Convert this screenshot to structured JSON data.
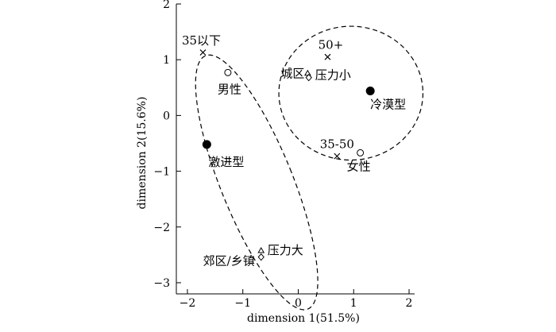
{
  "chart_data": {
    "type": "scatter",
    "xlabel": "dimension 1(51.5%)",
    "ylabel": "dimension 2(15.6%)",
    "xlim": [
      -2.2,
      2.1
    ],
    "ylim": [
      -3.2,
      2.0
    ],
    "xticks": [
      -2,
      -1,
      0,
      1,
      2
    ],
    "yticks": [
      -3,
      -2,
      -1,
      0,
      1,
      2
    ],
    "grid": false,
    "points": [
      {
        "label": "35以下",
        "x": -1.72,
        "y": 1.13,
        "marker": "cross"
      },
      {
        "label": "50+",
        "x": 0.53,
        "y": 1.05,
        "marker": "cross"
      },
      {
        "label": "35-50",
        "x": 0.7,
        "y": -0.73,
        "marker": "cross"
      },
      {
        "label": "男性",
        "x": -1.27,
        "y": 0.77,
        "marker": "circle-open"
      },
      {
        "label": "女性",
        "x": 1.12,
        "y": -0.67,
        "marker": "circle-open"
      },
      {
        "label": "城区",
        "x": 0.17,
        "y": 0.75,
        "marker": "triangle"
      },
      {
        "label": "压力小",
        "x": 0.19,
        "y": 0.68,
        "marker": "diamond"
      },
      {
        "label": "冷漠型",
        "x": 1.3,
        "y": 0.44,
        "marker": "circle-filled"
      },
      {
        "label": "激进型",
        "x": -1.65,
        "y": -0.52,
        "marker": "circle-filled"
      },
      {
        "label": "压力大",
        "x": -0.67,
        "y": -2.43,
        "marker": "triangle"
      },
      {
        "label": "郊区/乡镇",
        "x": -0.67,
        "y": -2.54,
        "marker": "diamond"
      }
    ],
    "ellipses": [
      {
        "cx": 0.95,
        "cy": 0.4,
        "rx": 1.3,
        "ry": 1.2,
        "rotate": 0
      },
      {
        "cx": -0.75,
        "cy": -1.2,
        "rx": 0.65,
        "ry": 2.45,
        "rotate": -22
      }
    ]
  }
}
